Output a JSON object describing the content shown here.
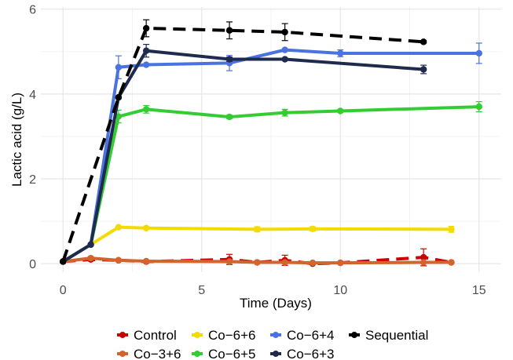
{
  "chart_data": {
    "type": "line",
    "xlabel": "Time (Days)",
    "ylabel": "Lactic acid  (g/L)",
    "xlim": [
      -0.8,
      15.8
    ],
    "ylim": [
      -0.2,
      6.05
    ],
    "x_ticks": [
      0,
      5,
      10,
      15
    ],
    "y_ticks": [
      0,
      2,
      4,
      6
    ],
    "grid": true,
    "legend_position": "bottom",
    "series": [
      {
        "name": "Control",
        "color": "#cc0000",
        "dashed": true,
        "x": [
          0,
          1,
          2,
          3,
          6,
          7,
          8,
          9,
          10,
          13,
          14
        ],
        "y": [
          0.05,
          0.1,
          0.08,
          0.05,
          0.1,
          0.03,
          0.08,
          0.0,
          0.02,
          0.15,
          0.03
        ],
        "err": [
          0.0,
          0.0,
          0.0,
          0.0,
          0.12,
          0.0,
          0.12,
          0.0,
          0.0,
          0.2,
          0.0
        ]
      },
      {
        "name": "Co−3+6",
        "color": "#d2642e",
        "dashed": false,
        "x": [
          0,
          1,
          2,
          3,
          6,
          7,
          8,
          9,
          10,
          13,
          14
        ],
        "y": [
          0.05,
          0.13,
          0.08,
          0.06,
          0.05,
          0.03,
          0.03,
          0.02,
          0.02,
          0.03,
          0.03
        ],
        "err": [
          0.0,
          0.03,
          0.02,
          0.0,
          0.0,
          0.0,
          0.0,
          0.0,
          0.0,
          0.0,
          0.0
        ]
      },
      {
        "name": "Co−6+6",
        "color": "#f2dc00",
        "dashed": false,
        "x": [
          0,
          1,
          2,
          3,
          7,
          9,
          14
        ],
        "y": [
          0.05,
          0.45,
          0.86,
          0.84,
          0.81,
          0.82,
          0.81
        ],
        "err": [
          0.0,
          0.0,
          0.0,
          0.03,
          0.06,
          0.05,
          0.07
        ]
      },
      {
        "name": "Co−6+5",
        "color": "#33cc33",
        "dashed": false,
        "x": [
          0,
          1,
          2,
          3,
          6,
          8,
          10,
          15
        ],
        "y": [
          0.05,
          0.45,
          3.47,
          3.64,
          3.46,
          3.56,
          3.6,
          3.7
        ],
        "err": [
          0.0,
          0.0,
          0.15,
          0.09,
          0.04,
          0.08,
          0.03,
          0.12
        ]
      },
      {
        "name": "Co−6+4",
        "color": "#4a72e0",
        "dashed": false,
        "x": [
          0,
          1,
          2,
          3,
          6,
          8,
          10,
          15
        ],
        "y": [
          0.05,
          0.45,
          4.63,
          4.69,
          4.73,
          5.04,
          4.96,
          4.96
        ],
        "err": [
          0.0,
          0.0,
          0.27,
          0.0,
          0.18,
          0.0,
          0.08,
          0.24
        ]
      },
      {
        "name": "Co−6+3",
        "color": "#1e2a4e",
        "dashed": false,
        "x": [
          0,
          1,
          2,
          3,
          6,
          8,
          13
        ],
        "y": [
          0.05,
          0.45,
          3.92,
          5.02,
          4.82,
          4.82,
          4.58
        ],
        "err": [
          0.0,
          0.0,
          0.0,
          0.15,
          0.05,
          0.0,
          0.1
        ]
      },
      {
        "name": "Sequential",
        "color": "#000000",
        "dashed": true,
        "x": [
          0,
          2,
          3,
          6,
          8,
          13
        ],
        "y": [
          0.05,
          3.92,
          5.55,
          5.5,
          5.46,
          5.23
        ],
        "err": [
          0.0,
          0.0,
          0.2,
          0.2,
          0.2,
          0.03
        ]
      }
    ]
  }
}
